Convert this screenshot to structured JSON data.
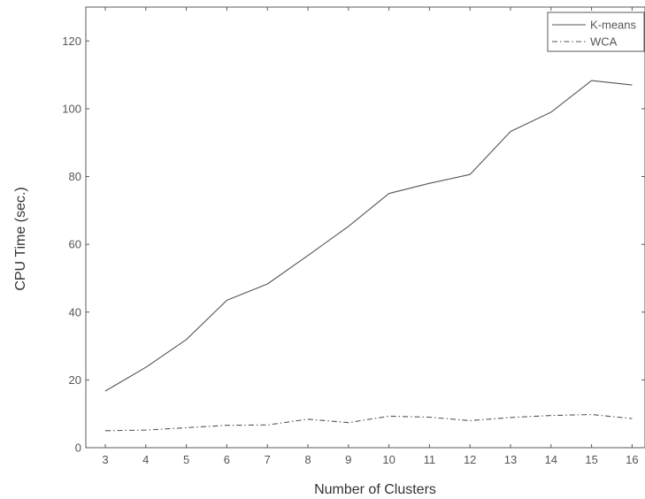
{
  "chart_data": {
    "type": "line",
    "title": "",
    "xlabel": "Number of Clusters",
    "ylabel": "CPU Time (sec.)",
    "x": [
      3,
      4,
      5,
      6,
      7,
      8,
      9,
      10,
      11,
      12,
      13,
      14,
      15,
      16
    ],
    "xlim": [
      3,
      16
    ],
    "ylim": [
      0,
      130
    ],
    "xticks": [
      3,
      4,
      5,
      6,
      7,
      8,
      9,
      10,
      11,
      12,
      13,
      14,
      15,
      16
    ],
    "yticks": [
      0,
      20,
      40,
      60,
      80,
      100,
      120
    ],
    "grid": false,
    "legend_position": "top-right",
    "series": [
      {
        "name": "K-means",
        "line_style": "solid",
        "color": "#555555",
        "values": [
          16.7,
          23.7,
          31.9,
          43.5,
          48.3,
          56.7,
          65.3,
          75.0,
          78.0,
          80.6,
          93.3,
          99.0,
          108.3,
          107.0
        ]
      },
      {
        "name": "WCA",
        "line_style": "dash-dot",
        "color": "#555555",
        "values": [
          5.0,
          5.2,
          5.9,
          6.6,
          6.7,
          8.4,
          7.4,
          9.3,
          9.0,
          8.0,
          8.9,
          9.5,
          9.8,
          8.6
        ]
      }
    ]
  }
}
